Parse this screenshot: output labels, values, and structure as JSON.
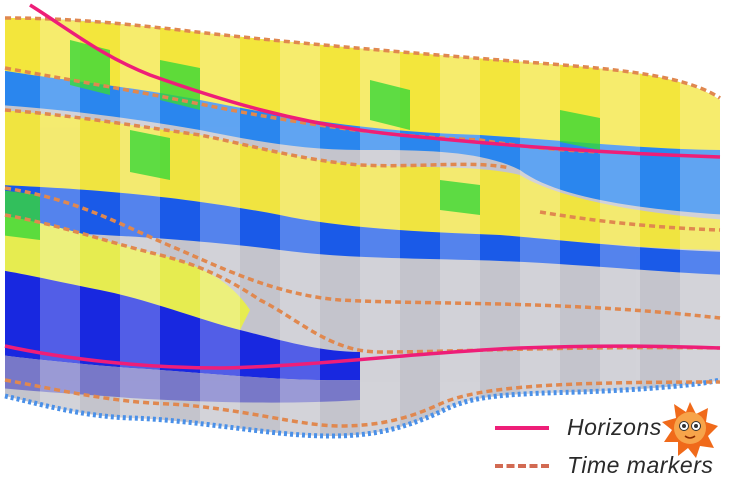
{
  "legend": {
    "horizons_label": "Horizons",
    "time_markers_label": "Time markers",
    "horizons_color": "#ee1e78",
    "time_markers_color": "#e0884f"
  },
  "palette": {
    "yellow": "#f5e83a",
    "light_yellow": "#e8f060",
    "green": "#38d838",
    "yellow_green": "#a8e840",
    "cyan": "#18c8c0",
    "light_blue": "#2aa8f0",
    "blue": "#1050e8",
    "dark_blue": "#0a18e0",
    "purple_gray": "#7070c8",
    "gray": "#c0c0c8",
    "outline_blue": "#4a90e8"
  },
  "sticker_icon": "sun-face-icon"
}
